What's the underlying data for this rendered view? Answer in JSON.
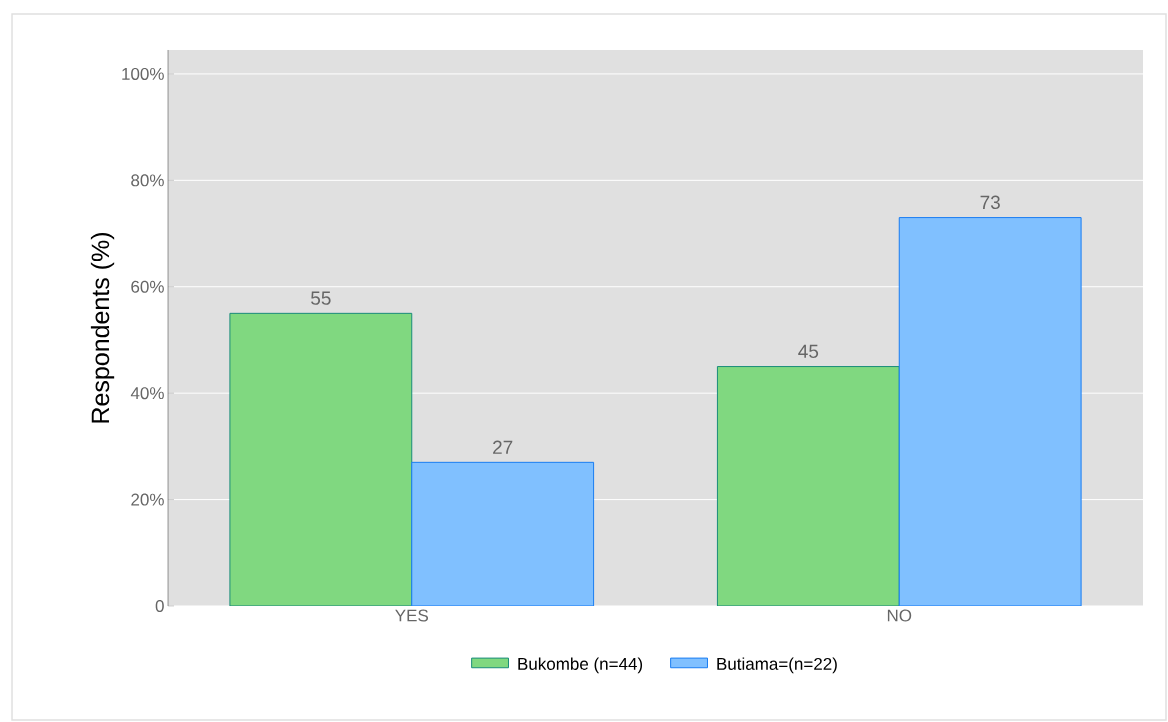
{
  "chart_data": {
    "type": "bar",
    "ylabel": "Respondents (%)",
    "categories": [
      "YES",
      "NO"
    ],
    "series": [
      {
        "name": "Bukombe (n=44)",
        "color": "#80d880",
        "values": [
          55,
          45
        ]
      },
      {
        "name": "Butiama=(n=22)",
        "color": "#80c0ff",
        "values": [
          27,
          73
        ]
      }
    ],
    "ylim": [
      0,
      104.5
    ],
    "yticks": [
      {
        "value": 0,
        "label": "0"
      },
      {
        "value": 20,
        "label": "20%"
      },
      {
        "value": 40,
        "label": "40%"
      },
      {
        "value": 60,
        "label": "60%"
      },
      {
        "value": 80,
        "label": "80%"
      },
      {
        "value": 100,
        "label": "100%"
      }
    ],
    "grid": "y",
    "legend": "bottom",
    "data_labels": true
  }
}
